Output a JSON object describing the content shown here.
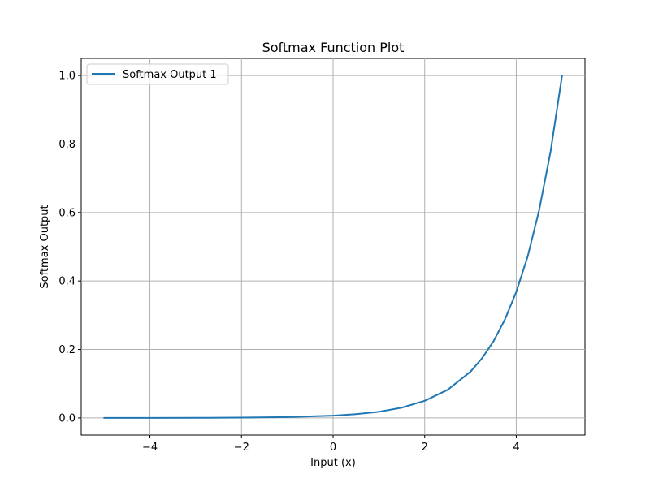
{
  "chart_data": {
    "type": "line",
    "title": "Softmax Function Plot",
    "xlabel": "Input (x)",
    "ylabel": "Softmax Output",
    "xlim": [
      -5.5,
      5.5
    ],
    "ylim": [
      -0.05,
      1.05
    ],
    "xticks": [
      -4,
      -2,
      0,
      2,
      4
    ],
    "xtick_labels": [
      "−4",
      "−2",
      "0",
      "2",
      "4"
    ],
    "yticks": [
      0.0,
      0.2,
      0.4,
      0.6,
      0.8,
      1.0
    ],
    "ytick_labels": [
      "0.0",
      "0.2",
      "0.4",
      "0.6",
      "0.8",
      "1.0"
    ],
    "grid": true,
    "legend_position": "top-left",
    "series": [
      {
        "name": "Softmax Output 1",
        "color": "#1f77b4",
        "x": [
          -5,
          -4,
          -3,
          -2,
          -1,
          0,
          0.5,
          1,
          1.5,
          2,
          2.5,
          3,
          3.25,
          3.5,
          3.75,
          4,
          4.25,
          4.5,
          4.75,
          5
        ],
        "y": [
          0.0,
          0.0001,
          0.0003,
          0.0009,
          0.0025,
          0.0067,
          0.011,
          0.018,
          0.03,
          0.05,
          0.082,
          0.135,
          0.174,
          0.223,
          0.287,
          0.368,
          0.472,
          0.607,
          0.779,
          1.0
        ]
      }
    ]
  }
}
